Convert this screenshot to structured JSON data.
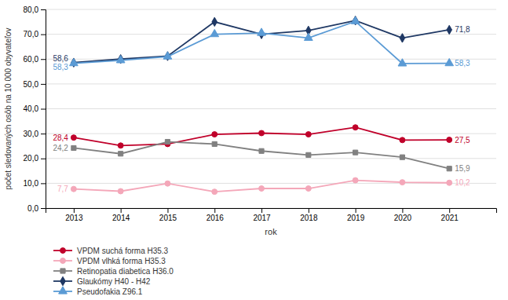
{
  "chart_data": {
    "type": "line",
    "xlabel": "rok",
    "ylabel": "počet sledovaných osôb na 10 000 obyvateľov",
    "x": [
      2013,
      2014,
      2015,
      2016,
      2017,
      2018,
      2019,
      2020,
      2021
    ],
    "xlim": [
      2012.4,
      2022.0
    ],
    "xticks": [
      2013,
      2014,
      2015,
      2016,
      2017,
      2018,
      2019,
      2020,
      2021
    ],
    "ylim": [
      0,
      80
    ],
    "yticks": [
      {
        "value": 0.0,
        "label": "0,0"
      },
      {
        "value": 10.0,
        "label": "10,0"
      },
      {
        "value": 20.0,
        "label": "20,0"
      },
      {
        "value": 30.0,
        "label": "30,0"
      },
      {
        "value": 40.0,
        "label": "40,0"
      },
      {
        "value": 50.0,
        "label": "50,0"
      },
      {
        "value": 60.0,
        "label": "60,0"
      },
      {
        "value": 70.0,
        "label": "70,0"
      },
      {
        "value": 80.0,
        "label": "80,0"
      }
    ],
    "grid": true,
    "legend": "bottom",
    "data_labels": true,
    "series": [
      {
        "name": "VPDM suchá forma H35.3",
        "color": "#c0002a",
        "marker": "circle",
        "values": [
          28.4,
          25.2,
          25.8,
          29.7,
          30.2,
          29.7,
          32.5,
          27.4,
          27.5
        ],
        "value_labels": [
          "28,4",
          null,
          null,
          null,
          null,
          null,
          null,
          null,
          "27,5"
        ]
      },
      {
        "name": "VPDM vlhká forma H35.3",
        "color": "#f4a7b9",
        "marker": "circle",
        "values": [
          7.7,
          6.8,
          9.9,
          6.6,
          7.9,
          7.9,
          11.2,
          10.4,
          10.2
        ],
        "value_labels": [
          "7,7",
          null,
          null,
          null,
          null,
          null,
          null,
          null,
          "10,2"
        ]
      },
      {
        "name": "Retinopatia diabetica H36.0",
        "color": "#808080",
        "marker": "square",
        "values": [
          24.2,
          21.9,
          26.7,
          25.8,
          23.0,
          21.4,
          22.4,
          20.5,
          15.9
        ],
        "value_labels": [
          "24,2",
          null,
          null,
          null,
          null,
          null,
          null,
          null,
          "15,9"
        ]
      },
      {
        "name": "Glaukómy H40 - H42",
        "color": "#1f3864",
        "marker": "diamond",
        "values": [
          58.6,
          60.0,
          61.2,
          75.0,
          70.0,
          71.5,
          75.5,
          68.5,
          71.8
        ],
        "value_labels": [
          "58,6",
          null,
          null,
          null,
          null,
          null,
          null,
          null,
          "71,8"
        ]
      },
      {
        "name": "Pseudofakia Z96.1",
        "color": "#5b9bd5",
        "marker": "triangle",
        "values": [
          58.3,
          59.5,
          61.0,
          70.0,
          70.5,
          68.5,
          75.2,
          58.2,
          58.3
        ],
        "value_labels": [
          "58,3",
          null,
          null,
          null,
          null,
          null,
          null,
          null,
          "58,3"
        ]
      }
    ]
  }
}
